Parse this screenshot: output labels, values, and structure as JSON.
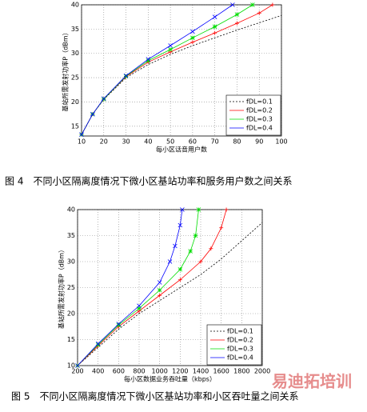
{
  "chart_data": [
    {
      "type": "line",
      "xlabel": "每小区话音用户数",
      "ylabel": "基站所需发射功率P（dBm）",
      "xlim": [
        10,
        100
      ],
      "xticks": [
        10,
        20,
        30,
        40,
        50,
        60,
        70,
        80,
        90,
        100
      ],
      "ylim": [
        13,
        40
      ],
      "yticks": [
        15,
        20,
        25,
        30,
        35,
        40
      ],
      "grid": true,
      "legend": "lower right",
      "series": [
        {
          "name": "fDL=0.1",
          "color": "#000000",
          "dashed": true,
          "marker": "none",
          "x": [
            10,
            15,
            20,
            30,
            40,
            50,
            60,
            70,
            80,
            90,
            100
          ],
          "values": [
            13.3,
            17.5,
            20.5,
            25,
            27.7,
            29.8,
            31.6,
            33.2,
            34.8,
            36.3,
            37.8
          ]
        },
        {
          "name": "fDL=0.2",
          "color": "#ff0000",
          "marker": "+",
          "x": [
            10,
            15,
            20,
            30,
            40,
            50,
            60,
            70,
            80,
            90,
            96
          ],
          "values": [
            13.3,
            17.5,
            20.6,
            25.2,
            28.2,
            30.3,
            32.3,
            34.2,
            36.2,
            38.3,
            40
          ]
        },
        {
          "name": "fDL=0.3",
          "color": "#00dd00",
          "marker": "*",
          "x": [
            10,
            15,
            20,
            30,
            40,
            50,
            60,
            70,
            80,
            87
          ],
          "values": [
            13.3,
            17.5,
            20.6,
            25.3,
            28.5,
            30.8,
            33.2,
            35.5,
            38,
            40
          ]
        },
        {
          "name": "fDL=0.4",
          "color": "#0000ff",
          "marker": "x",
          "x": [
            10,
            15,
            20,
            30,
            40,
            50,
            60,
            70,
            78
          ],
          "values": [
            13.3,
            17.5,
            20.7,
            25.4,
            28.8,
            31.6,
            34.5,
            37.5,
            40
          ]
        }
      ]
    },
    {
      "type": "line",
      "xlabel": "每小区数据业务吞吐量（kbps）",
      "ylabel": "基站所需发射功率P（dBm）",
      "xlim": [
        200,
        2000
      ],
      "xticks": [
        200,
        400,
        600,
        800,
        1000,
        1200,
        1400,
        1600,
        1800,
        2000
      ],
      "ylim": [
        10,
        40
      ],
      "yticks": [
        10,
        15,
        20,
        25,
        30,
        35,
        40
      ],
      "grid": true,
      "legend": "lower right",
      "series": [
        {
          "name": "fDL=0.1",
          "color": "#000000",
          "dashed": true,
          "marker": "none",
          "x": [
            200,
            400,
            600,
            800,
            1000,
            1200,
            1400,
            1600,
            1800,
            2000
          ],
          "values": [
            10,
            13.5,
            17,
            20,
            22.5,
            25,
            27.5,
            30.5,
            34,
            37.5
          ]
        },
        {
          "name": "fDL=0.2",
          "color": "#ff0000",
          "marker": "+",
          "x": [
            200,
            400,
            600,
            800,
            1000,
            1200,
            1400,
            1500,
            1600,
            1650
          ],
          "values": [
            10,
            13.8,
            17.5,
            20.5,
            23.5,
            26.5,
            30,
            32.5,
            36.5,
            40
          ]
        },
        {
          "name": "fDL=0.3",
          "color": "#00dd00",
          "marker": "*",
          "x": [
            200,
            400,
            600,
            800,
            1000,
            1200,
            1300,
            1350,
            1380
          ],
          "values": [
            10,
            14,
            17.8,
            21,
            24.5,
            28.5,
            32,
            35,
            40
          ]
        },
        {
          "name": "fDL=0.4",
          "color": "#0000ff",
          "marker": "x",
          "x": [
            200,
            400,
            600,
            800,
            1000,
            1100,
            1150,
            1200,
            1220
          ],
          "values": [
            10,
            14.2,
            18,
            21.5,
            26,
            30,
            33,
            37,
            40
          ]
        }
      ]
    }
  ],
  "captions": [
    "图 4　不同小区隔离度情况下微小区基站功率和服务用户数之间关系",
    "图 5　不同小区隔离度情况下微小区基站功率和小区吞吐量之间关系"
  ],
  "watermark": "易迪拓培训"
}
